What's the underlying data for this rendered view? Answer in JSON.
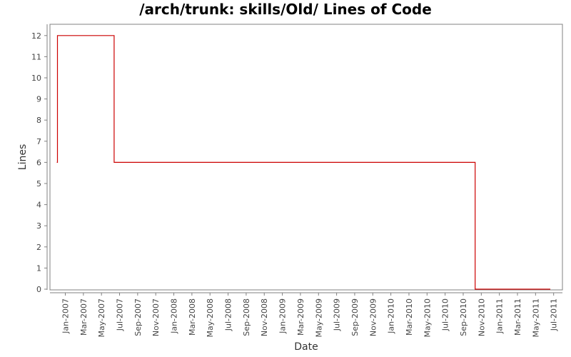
{
  "chart_data": {
    "type": "line",
    "title": "/arch/trunk: skills/Old/ Lines of Code",
    "xlabel": "Date",
    "ylabel": "Lines",
    "ylim": [
      0,
      12.5
    ],
    "y_ticks": [
      "0",
      "1",
      "2",
      "3",
      "4",
      "5",
      "6",
      "7",
      "8",
      "9",
      "10",
      "11",
      "12"
    ],
    "x_ticks": [
      "Jan-2007",
      "Mar-2007",
      "May-2007",
      "Jul-2007",
      "Sep-2007",
      "Nov-2007",
      "Jan-2008",
      "Mar-2008",
      "May-2008",
      "Jul-2008",
      "Sep-2008",
      "Nov-2008",
      "Jan-2009",
      "Mar-2009",
      "May-2009",
      "Jul-2009",
      "Sep-2009",
      "Nov-2009",
      "Jan-2010",
      "Mar-2010",
      "May-2010",
      "Jul-2010",
      "Sep-2010",
      "Nov-2010",
      "Jan-2011",
      "Mar-2011",
      "May-2011",
      "Jul-2011"
    ],
    "grid": false,
    "series": [
      {
        "color": "#cc0000",
        "step": true,
        "x": [
          "2006-12-03",
          "2006-12-05",
          "2007-06-13",
          "2010-10-11",
          "2011-06-20"
        ],
        "y": [
          6,
          12,
          6,
          0,
          0
        ]
      }
    ]
  }
}
